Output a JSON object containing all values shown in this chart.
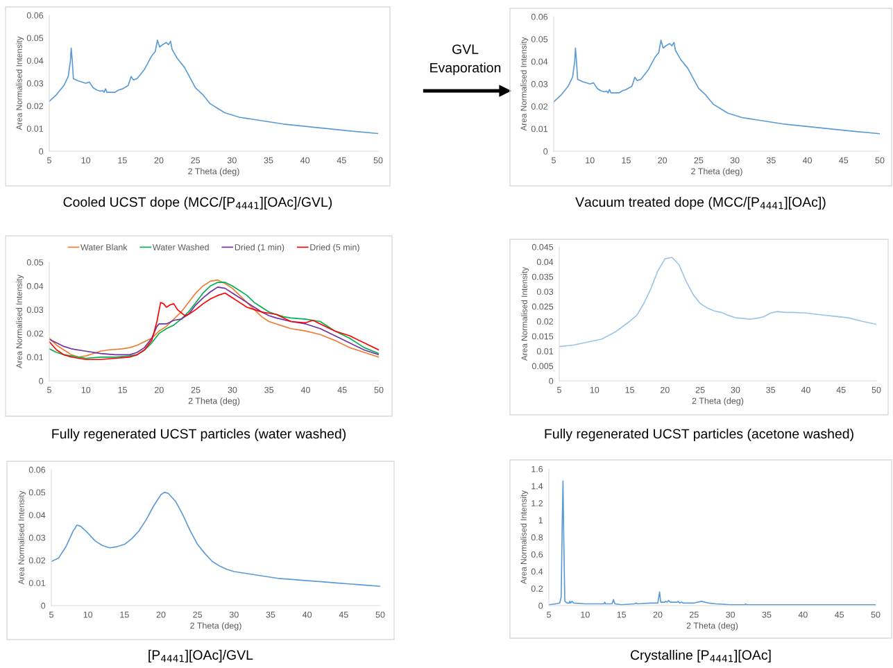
{
  "chart_data": [
    {
      "type": "line",
      "xlabel": "2 Theta (deg)",
      "ylabel": "Area Normalised Intensity",
      "xlim": [
        5,
        50
      ],
      "xticks": [
        5,
        10,
        15,
        20,
        25,
        30,
        35,
        40,
        45,
        50
      ],
      "ylim": [
        0,
        0.06
      ],
      "yticks": [
        0,
        0.01,
        0.02,
        0.03,
        0.04,
        0.05,
        0.06
      ],
      "annotations": [
        "Cooled UCST dope (MCC/[P$_{4441}$][OAc]/GVL)",
        "GVL\nEvaporation"
      ],
      "series": [
        {
          "color": "#5b9bd5",
          "x": [
            5,
            6,
            7,
            7.6,
            7.9,
            8.0,
            8.15,
            8.3,
            9,
            10,
            10.5,
            11,
            11.5,
            12,
            12.3,
            12.5,
            12.7,
            12.9,
            14,
            14.5,
            15,
            15.8,
            16.2,
            16.5,
            17,
            18,
            19,
            19.5,
            19.8,
            20.1,
            20.5,
            21,
            21.3,
            21.6,
            21.8,
            22.5,
            23.5,
            24,
            25,
            26,
            27,
            28,
            29,
            30,
            31,
            32,
            33,
            35,
            37,
            40,
            43,
            46,
            50
          ],
          "values": [
            0.022,
            0.025,
            0.029,
            0.033,
            0.04,
            0.0455,
            0.04,
            0.032,
            0.031,
            0.03,
            0.0305,
            0.028,
            0.027,
            0.0265,
            0.0268,
            0.026,
            0.0275,
            0.026,
            0.026,
            0.027,
            0.0275,
            0.029,
            0.033,
            0.0315,
            0.032,
            0.036,
            0.042,
            0.044,
            0.049,
            0.046,
            0.047,
            0.048,
            0.047,
            0.0485,
            0.045,
            0.041,
            0.037,
            0.034,
            0.028,
            0.025,
            0.021,
            0.019,
            0.017,
            0.016,
            0.015,
            0.0145,
            0.014,
            0.013,
            0.012,
            0.011,
            0.01,
            0.009,
            0.0078
          ]
        }
      ]
    },
    {
      "type": "line",
      "xlabel": "2 Theta (deg)",
      "ylabel": "Area Normalised Intensity",
      "xlim": [
        5,
        50
      ],
      "xticks": [
        5,
        10,
        15,
        20,
        25,
        30,
        35,
        40,
        45,
        50
      ],
      "ylim": [
        0,
        0.06
      ],
      "yticks": [
        0,
        0.01,
        0.02,
        0.03,
        0.04,
        0.05,
        0.06
      ],
      "annotations": [
        "Vacuum treated dope (MCC/[P$_{4441}$][OAc])"
      ],
      "series": [
        {
          "color": "#5b9bd5",
          "x": [
            5,
            6,
            7,
            7.6,
            7.9,
            8.0,
            8.15,
            8.3,
            9,
            10,
            10.5,
            11,
            11.5,
            12,
            12.3,
            12.5,
            12.7,
            12.9,
            14,
            14.5,
            15,
            15.8,
            16.2,
            16.5,
            17,
            18,
            19,
            19.5,
            19.8,
            20.1,
            20.5,
            21,
            21.3,
            21.6,
            21.8,
            22.5,
            23.5,
            24,
            25,
            26,
            27,
            28,
            29,
            30,
            31,
            32,
            33,
            35,
            37,
            40,
            43,
            46,
            50
          ],
          "values": [
            0.022,
            0.025,
            0.029,
            0.033,
            0.04,
            0.046,
            0.04,
            0.032,
            0.031,
            0.03,
            0.0305,
            0.028,
            0.027,
            0.0265,
            0.0268,
            0.026,
            0.0275,
            0.026,
            0.026,
            0.027,
            0.0275,
            0.029,
            0.033,
            0.0315,
            0.032,
            0.036,
            0.042,
            0.044,
            0.0495,
            0.046,
            0.047,
            0.048,
            0.047,
            0.0485,
            0.045,
            0.041,
            0.037,
            0.034,
            0.028,
            0.025,
            0.021,
            0.019,
            0.017,
            0.016,
            0.015,
            0.0145,
            0.014,
            0.013,
            0.012,
            0.011,
            0.01,
            0.009,
            0.0078
          ]
        }
      ]
    },
    {
      "type": "line",
      "xlabel": "2 Theta (deg)",
      "ylabel": "Area Normalised Intensity",
      "xlim": [
        5,
        50
      ],
      "xticks": [
        5,
        10,
        15,
        20,
        25,
        30,
        35,
        40,
        45,
        50
      ],
      "ylim": [
        0,
        0.05
      ],
      "yticks": [
        0,
        0.01,
        0.02,
        0.03,
        0.04,
        0.05
      ],
      "legend": "top",
      "annotations": [
        "Fully regenerated UCST particles (water washed)"
      ],
      "series": [
        {
          "name": "Water Blank",
          "color": "#ed7d31",
          "x": [
            5,
            6,
            7,
            8,
            9,
            10,
            11,
            12,
            13,
            15,
            16,
            17,
            18,
            19,
            20,
            21,
            22,
            23,
            24,
            25,
            26,
            27,
            28,
            29,
            30,
            31,
            32,
            33,
            34,
            35,
            36,
            37,
            38,
            40,
            42,
            44,
            46,
            48,
            50
          ],
          "values": [
            0.018,
            0.015,
            0.013,
            0.011,
            0.01,
            0.0105,
            0.0115,
            0.0125,
            0.013,
            0.0135,
            0.014,
            0.015,
            0.0165,
            0.018,
            0.021,
            0.023,
            0.026,
            0.029,
            0.033,
            0.037,
            0.04,
            0.042,
            0.0425,
            0.041,
            0.039,
            0.036,
            0.033,
            0.03,
            0.027,
            0.025,
            0.024,
            0.023,
            0.022,
            0.021,
            0.0195,
            0.017,
            0.014,
            0.012,
            0.01
          ]
        },
        {
          "name": "Water Washed",
          "color": "#00b050",
          "x": [
            5,
            6,
            7,
            8,
            9,
            10,
            12,
            14,
            16,
            17,
            18,
            19,
            20,
            21,
            22,
            23,
            24,
            25,
            26,
            27,
            28,
            29,
            30,
            31,
            32,
            33,
            34,
            35,
            36,
            37,
            38,
            40,
            41,
            42,
            44,
            46,
            48,
            50
          ],
          "values": [
            0.0135,
            0.012,
            0.011,
            0.0105,
            0.01,
            0.0095,
            0.01,
            0.01,
            0.0105,
            0.011,
            0.013,
            0.016,
            0.02,
            0.022,
            0.0235,
            0.026,
            0.029,
            0.033,
            0.037,
            0.04,
            0.0415,
            0.0415,
            0.04,
            0.038,
            0.036,
            0.033,
            0.031,
            0.029,
            0.028,
            0.027,
            0.0265,
            0.026,
            0.0255,
            0.025,
            0.021,
            0.018,
            0.014,
            0.0115
          ]
        },
        {
          "name": "Dried (1 min)",
          "color": "#7030a0",
          "x": [
            5,
            6,
            7,
            8,
            10,
            12,
            14,
            16,
            17,
            18,
            19,
            19.7,
            20,
            21,
            22,
            23,
            24,
            25,
            26,
            27,
            28,
            29,
            30,
            31,
            32,
            33,
            34,
            35,
            36,
            38,
            40,
            42,
            44,
            46,
            48,
            50
          ],
          "values": [
            0.0175,
            0.016,
            0.0145,
            0.0135,
            0.0125,
            0.0115,
            0.011,
            0.011,
            0.012,
            0.014,
            0.018,
            0.023,
            0.024,
            0.024,
            0.0255,
            0.026,
            0.028,
            0.032,
            0.035,
            0.0375,
            0.0395,
            0.039,
            0.037,
            0.035,
            0.033,
            0.031,
            0.029,
            0.0275,
            0.0265,
            0.025,
            0.024,
            0.022,
            0.019,
            0.016,
            0.013,
            0.011
          ]
        },
        {
          "name": "Dried (5 min)",
          "color": "#ff0000",
          "x": [
            5,
            6,
            7,
            8,
            10,
            12,
            14,
            16,
            17,
            18,
            19,
            19.7,
            20.2,
            20.6,
            21,
            21.5,
            22,
            22.5,
            23.5,
            24,
            25,
            26,
            27,
            28,
            29,
            30,
            31,
            32,
            33,
            34,
            35,
            36,
            38,
            40,
            41,
            42,
            44,
            46,
            48,
            50
          ],
          "values": [
            0.0165,
            0.013,
            0.011,
            0.01,
            0.009,
            0.009,
            0.0095,
            0.01,
            0.011,
            0.013,
            0.017,
            0.025,
            0.033,
            0.0325,
            0.031,
            0.032,
            0.0325,
            0.03,
            0.0275,
            0.028,
            0.03,
            0.0325,
            0.0345,
            0.036,
            0.037,
            0.035,
            0.033,
            0.031,
            0.03,
            0.029,
            0.0285,
            0.028,
            0.025,
            0.0245,
            0.0255,
            0.024,
            0.021,
            0.019,
            0.016,
            0.013
          ]
        }
      ]
    },
    {
      "type": "line",
      "xlabel": "2 Theta (deg)",
      "ylabel": "Area Normalised Intensity",
      "xlim": [
        5,
        50
      ],
      "xticks": [
        5,
        10,
        15,
        20,
        25,
        30,
        35,
        40,
        45,
        50
      ],
      "ylim": [
        0,
        0.045
      ],
      "yticks": [
        0,
        0.005,
        0.01,
        0.015,
        0.02,
        0.025,
        0.03,
        0.035,
        0.04,
        0.045
      ],
      "annotations": [
        "Fully regenerated UCST particles (acetone washed)"
      ],
      "series": [
        {
          "color": "#9dc3e6",
          "x": [
            5,
            7,
            9,
            11,
            13,
            15,
            16,
            17,
            18,
            19,
            20,
            21,
            22,
            23,
            24,
            25,
            26,
            27,
            28,
            29,
            30,
            31,
            32,
            33,
            34,
            35,
            36,
            37,
            38,
            40,
            42,
            44,
            46,
            48,
            50
          ],
          "values": [
            0.0115,
            0.012,
            0.013,
            0.014,
            0.0165,
            0.02,
            0.022,
            0.026,
            0.031,
            0.037,
            0.041,
            0.0415,
            0.039,
            0.0335,
            0.029,
            0.026,
            0.0245,
            0.0235,
            0.023,
            0.022,
            0.0212,
            0.021,
            0.0207,
            0.021,
            0.0215,
            0.0228,
            0.0233,
            0.023,
            0.023,
            0.0228,
            0.0222,
            0.0217,
            0.0212,
            0.02,
            0.019
          ]
        }
      ]
    },
    {
      "type": "line",
      "xlabel": "2 Theta (deg)",
      "ylabel": "Area Normalised Intensity",
      "xlim": [
        5,
        50
      ],
      "xticks": [
        5,
        10,
        15,
        20,
        25,
        30,
        35,
        40,
        45,
        50
      ],
      "ylim": [
        0,
        0.06
      ],
      "yticks": [
        0,
        0.01,
        0.02,
        0.03,
        0.04,
        0.05,
        0.06
      ],
      "annotations": [
        "[P$_{4441}$][OAc]/GVL"
      ],
      "series": [
        {
          "color": "#5b9bd5",
          "x": [
            5,
            6,
            7,
            8,
            8.5,
            9,
            10,
            11,
            12,
            13,
            14,
            15,
            16,
            17,
            18,
            19,
            20,
            20.5,
            21,
            22,
            23,
            24,
            25,
            26,
            27,
            28,
            29,
            30,
            32,
            34,
            36,
            38,
            40,
            42,
            44,
            46,
            48,
            50
          ],
          "values": [
            0.0195,
            0.021,
            0.026,
            0.033,
            0.0355,
            0.035,
            0.032,
            0.0285,
            0.0265,
            0.0255,
            0.026,
            0.027,
            0.0295,
            0.033,
            0.038,
            0.044,
            0.049,
            0.05,
            0.0495,
            0.046,
            0.04,
            0.033,
            0.027,
            0.023,
            0.0195,
            0.0175,
            0.016,
            0.015,
            0.014,
            0.013,
            0.012,
            0.0115,
            0.011,
            0.0105,
            0.01,
            0.0095,
            0.009,
            0.0085
          ]
        }
      ]
    },
    {
      "type": "line",
      "xlabel": "2 Theta (deg)",
      "ylabel": "Area Normalised Intensity",
      "xlim": [
        5,
        50
      ],
      "xticks": [
        5,
        10,
        15,
        20,
        25,
        30,
        35,
        40,
        45,
        50
      ],
      "ylim": [
        0,
        1.6
      ],
      "yticks": [
        0,
        0.2,
        0.4,
        0.6,
        0.8,
        1,
        1.2,
        1.4,
        1.6
      ],
      "annotations": [
        "Crystalline [P$_{4441}$][OAc]"
      ],
      "series": [
        {
          "color": "#5b9bd5",
          "x": [
            5,
            6,
            6.5,
            6.7,
            6.85,
            6.95,
            7.05,
            7.2,
            7.5,
            7.8,
            7.9,
            8.0,
            8.2,
            8.4,
            10,
            12,
            12.6,
            12.7,
            12.8,
            13.7,
            13.9,
            14.1,
            15,
            16.8,
            17,
            17.2,
            19,
            20,
            20.1,
            20.25,
            20.4,
            21,
            21.1,
            21.3,
            21.5,
            21.7,
            22.7,
            22.8,
            23,
            23.3,
            23.5,
            25,
            26,
            27,
            28,
            30,
            32,
            32.1,
            32.2,
            40,
            50
          ],
          "values": [
            0.01,
            0.02,
            0.03,
            0.1,
            1.0,
            1.46,
            0.8,
            0.05,
            0.03,
            0.03,
            0.05,
            0.03,
            0.05,
            0.03,
            0.02,
            0.02,
            0.02,
            0.04,
            0.02,
            0.02,
            0.07,
            0.02,
            0.01,
            0.02,
            0.03,
            0.02,
            0.03,
            0.03,
            0.08,
            0.16,
            0.04,
            0.04,
            0.05,
            0.04,
            0.06,
            0.04,
            0.04,
            0.05,
            0.03,
            0.04,
            0.03,
            0.03,
            0.05,
            0.03,
            0.02,
            0.01,
            0.01,
            0.02,
            0.01,
            0.01,
            0.01
          ]
        }
      ]
    }
  ]
}
